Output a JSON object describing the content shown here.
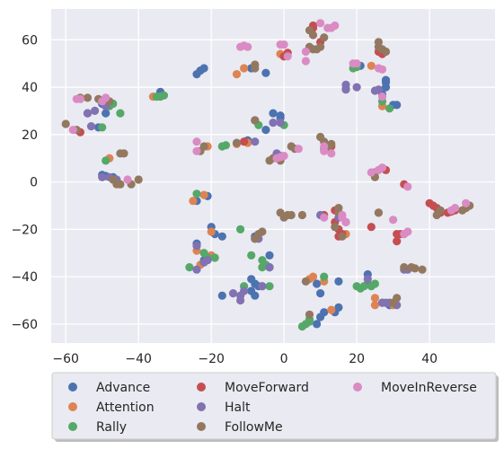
{
  "chart_data": {
    "type": "scatter",
    "xlim": [
      -64,
      58
    ],
    "ylim": [
      -68,
      73
    ],
    "x_ticks": [
      -60,
      -40,
      -20,
      0,
      20,
      40
    ],
    "y_ticks": [
      -60,
      -40,
      -20,
      0,
      20,
      40,
      60
    ],
    "x_tick_labels": [
      "−60",
      "−40",
      "−20",
      "0",
      "20",
      "40"
    ],
    "y_tick_labels": [
      "−60",
      "−40",
      "−20",
      "0",
      "20",
      "40",
      "60"
    ],
    "grid": true,
    "legend_placement": "bottom-center",
    "series": [
      {
        "name": "Advance",
        "color": "#4c72b0",
        "points": [
          [
            -24,
            45.5
          ],
          [
            -23,
            47
          ],
          [
            -22,
            48
          ],
          [
            -34,
            38
          ],
          [
            -50,
            33
          ],
          [
            -54,
            29
          ],
          [
            -49,
            29
          ],
          [
            -51,
            23
          ],
          [
            -50,
            3
          ],
          [
            -49,
            2.5
          ],
          [
            -47,
            2
          ],
          [
            -24,
            -8
          ],
          [
            -21,
            -6
          ],
          [
            -20,
            -19
          ],
          [
            -19,
            -22
          ],
          [
            -17,
            -23
          ],
          [
            -24,
            -26
          ],
          [
            -22,
            -33
          ],
          [
            -9,
            -46
          ],
          [
            -8,
            -48
          ],
          [
            -17,
            -48
          ],
          [
            -8,
            -43
          ],
          [
            -9,
            -41
          ],
          [
            -8,
            -23
          ],
          [
            -4,
            -36
          ],
          [
            -4,
            -31
          ],
          [
            -7,
            -44
          ],
          [
            -3,
            29
          ],
          [
            -1,
            28
          ],
          [
            -10,
            17.5
          ],
          [
            -5,
            22
          ],
          [
            -8,
            26
          ],
          [
            -1,
            27
          ],
          [
            -5,
            46
          ],
          [
            -9,
            48
          ],
          [
            9,
            -43
          ],
          [
            10,
            -47
          ],
          [
            10,
            -57
          ],
          [
            11,
            -55
          ],
          [
            9,
            -60
          ],
          [
            15,
            -42
          ],
          [
            14,
            -55
          ],
          [
            15,
            -53
          ],
          [
            28,
            40
          ],
          [
            28,
            42
          ],
          [
            28,
            43
          ],
          [
            30,
            32.5
          ],
          [
            31,
            32.5
          ],
          [
            21,
            49
          ],
          [
            27,
            37
          ],
          [
            23,
            -39
          ],
          [
            23,
            -43
          ],
          [
            29,
            -52
          ]
        ]
      },
      {
        "name": "Attention",
        "color": "#dd8452",
        "points": [
          [
            -13,
            45.5
          ],
          [
            -11,
            48
          ],
          [
            -36,
            36
          ],
          [
            -48,
            10
          ],
          [
            -25,
            -8
          ],
          [
            -20,
            -21
          ],
          [
            -20,
            -31
          ],
          [
            -24,
            -29
          ],
          [
            -23,
            -35
          ],
          [
            -13,
            16
          ],
          [
            -10,
            16.5
          ],
          [
            -2,
            10
          ],
          [
            -1,
            54
          ],
          [
            0,
            53
          ],
          [
            7,
            -41
          ],
          [
            8,
            -40
          ],
          [
            11,
            -42
          ],
          [
            13,
            -54
          ],
          [
            17,
            -22
          ],
          [
            25,
            -49
          ],
          [
            25,
            -52
          ],
          [
            27,
            -51
          ],
          [
            30,
            -52
          ],
          [
            27,
            32
          ],
          [
            24,
            49
          ],
          [
            -22,
            -5.5
          ],
          [
            -21,
            15
          ]
        ]
      },
      {
        "name": "Rally",
        "color": "#55a868",
        "points": [
          [
            -34,
            36
          ],
          [
            -33,
            36.5
          ],
          [
            -48,
            32
          ],
          [
            -47,
            33
          ],
          [
            -45,
            29
          ],
          [
            -49,
            9
          ],
          [
            -24,
            -5
          ],
          [
            -22,
            -30
          ],
          [
            -21,
            -32
          ],
          [
            -26,
            -36
          ],
          [
            -19,
            -32
          ],
          [
            -17,
            15
          ],
          [
            -16,
            15.5
          ],
          [
            -7,
            24
          ],
          [
            0,
            24
          ],
          [
            -12,
            -20
          ],
          [
            -11,
            -44
          ],
          [
            -9,
            -31
          ],
          [
            -6,
            -33
          ],
          [
            -6,
            -36
          ],
          [
            -5,
            -35
          ],
          [
            -6,
            -44
          ],
          [
            -4,
            -44
          ],
          [
            5,
            -61
          ],
          [
            6,
            -60
          ],
          [
            7,
            -59
          ],
          [
            7,
            -58
          ],
          [
            11,
            -40
          ],
          [
            17,
            39.5
          ],
          [
            19,
            48
          ],
          [
            20,
            48.5
          ],
          [
            20,
            -44
          ],
          [
            21,
            -45
          ],
          [
            22,
            -44
          ],
          [
            24,
            -44
          ],
          [
            25,
            -43
          ],
          [
            27,
            34
          ],
          [
            29,
            31
          ],
          [
            -50,
            23
          ],
          [
            -35,
            36
          ]
        ]
      },
      {
        "name": "MoveForward",
        "color": "#c44e52",
        "points": [
          [
            -56,
            21
          ],
          [
            -11,
            17
          ],
          [
            0,
            53
          ],
          [
            1,
            54.5
          ],
          [
            8,
            65
          ],
          [
            8,
            66
          ],
          [
            10,
            59
          ],
          [
            13,
            15
          ],
          [
            14,
            -12
          ],
          [
            15,
            -13
          ],
          [
            14,
            -17
          ],
          [
            15,
            -20
          ],
          [
            15,
            -23
          ],
          [
            16,
            -22
          ],
          [
            24,
            -19
          ],
          [
            26,
            -13
          ],
          [
            28,
            5
          ],
          [
            31,
            -22
          ],
          [
            31,
            -25
          ],
          [
            32,
            -22
          ],
          [
            33,
            -1
          ],
          [
            33,
            -22
          ],
          [
            40,
            -9
          ],
          [
            41,
            -10
          ],
          [
            42,
            -11
          ],
          [
            43,
            -13
          ],
          [
            45,
            -13
          ],
          [
            46,
            -12.5
          ],
          [
            47,
            -12
          ],
          [
            26,
            55
          ],
          [
            27,
            54
          ],
          [
            11,
            -14
          ]
        ]
      },
      {
        "name": "Halt",
        "color": "#8172b2",
        "points": [
          [
            -54,
            29
          ],
          [
            -52,
            30
          ],
          [
            -49,
            32
          ],
          [
            -53,
            23.5
          ],
          [
            -50,
            2
          ],
          [
            -48,
            2
          ],
          [
            -46,
            1
          ],
          [
            -24,
            -27
          ],
          [
            -24,
            -37
          ],
          [
            -22,
            -34
          ],
          [
            -21,
            -33
          ],
          [
            -14,
            -47
          ],
          [
            -12,
            -48
          ],
          [
            -12,
            -50
          ],
          [
            -11,
            -46
          ],
          [
            -8,
            -24
          ],
          [
            -7,
            -24
          ],
          [
            -6,
            -44
          ],
          [
            -4,
            -36
          ],
          [
            -8,
            17
          ],
          [
            -3,
            25
          ],
          [
            -1,
            25
          ],
          [
            -2,
            12
          ],
          [
            -1,
            11
          ],
          [
            11,
            14
          ],
          [
            10,
            -14
          ],
          [
            15,
            -15
          ],
          [
            17,
            41
          ],
          [
            17,
            39
          ],
          [
            20,
            40
          ],
          [
            25,
            38.5
          ],
          [
            26,
            39
          ],
          [
            23,
            -41
          ],
          [
            27,
            -51
          ],
          [
            28,
            -51
          ],
          [
            29,
            -51
          ],
          [
            31,
            -52
          ],
          [
            33,
            -37
          ],
          [
            34,
            -37
          ],
          [
            17,
            -17
          ]
        ]
      },
      {
        "name": "FollowMe",
        "color": "#937860",
        "points": [
          [
            -60,
            24.5
          ],
          [
            -57,
            22
          ],
          [
            -56,
            35.5
          ],
          [
            -54,
            35.5
          ],
          [
            -51,
            35
          ],
          [
            -48,
            34
          ],
          [
            -45,
            12
          ],
          [
            -44,
            12
          ],
          [
            -47,
            1
          ],
          [
            -46,
            -1
          ],
          [
            -45,
            -1
          ],
          [
            -42,
            -1
          ],
          [
            -40,
            1
          ],
          [
            -23,
            13
          ],
          [
            -22,
            15
          ],
          [
            -13,
            16.5
          ],
          [
            -8,
            26
          ],
          [
            -8,
            48
          ],
          [
            -8,
            49.5
          ],
          [
            -4,
            9
          ],
          [
            -3,
            10
          ],
          [
            -1,
            9
          ],
          [
            2,
            15
          ],
          [
            3,
            14
          ],
          [
            -1,
            -13
          ],
          [
            0,
            -15
          ],
          [
            1,
            -14
          ],
          [
            2,
            -14
          ],
          [
            5,
            -14
          ],
          [
            -6,
            -21
          ],
          [
            -7,
            -22
          ],
          [
            -8,
            -24
          ],
          [
            6,
            -42
          ],
          [
            7,
            -56
          ],
          [
            7,
            57
          ],
          [
            8,
            56
          ],
          [
            9,
            56
          ],
          [
            10,
            57
          ],
          [
            7,
            64
          ],
          [
            8,
            62
          ],
          [
            11,
            61
          ],
          [
            10,
            19
          ],
          [
            11,
            17
          ],
          [
            13,
            16
          ],
          [
            12,
            14
          ],
          [
            15,
            -11
          ],
          [
            15,
            -13
          ],
          [
            14,
            -19
          ],
          [
            16,
            -23
          ],
          [
            25,
            2
          ],
          [
            25,
            4
          ],
          [
            26,
            -13
          ],
          [
            27,
            6
          ],
          [
            26,
            57
          ],
          [
            26,
            59
          ],
          [
            27,
            56
          ],
          [
            28,
            55
          ],
          [
            33,
            -36
          ],
          [
            35,
            -36
          ],
          [
            36,
            -36.5
          ],
          [
            38,
            -37
          ],
          [
            31,
            -49
          ],
          [
            30,
            -51
          ],
          [
            42,
            -14
          ],
          [
            49,
            -12
          ],
          [
            50,
            -11
          ],
          [
            51,
            -10
          ],
          [
            43,
            -12
          ]
        ]
      },
      {
        "name": "MoveInReverse",
        "color": "#da8bc3",
        "points": [
          [
            -58,
            22
          ],
          [
            -57,
            35
          ],
          [
            -56,
            35
          ],
          [
            -50,
            34
          ],
          [
            -49,
            35.5
          ],
          [
            -43,
            1
          ],
          [
            -24,
            13
          ],
          [
            -24,
            17
          ],
          [
            -12,
            57
          ],
          [
            -11,
            57.5
          ],
          [
            -10,
            57
          ],
          [
            -2,
            10
          ],
          [
            -1,
            10.5
          ],
          [
            0,
            11
          ],
          [
            -1,
            58
          ],
          [
            0,
            58
          ],
          [
            1,
            53
          ],
          [
            4,
            14
          ],
          [
            6,
            55
          ],
          [
            6,
            51
          ],
          [
            10,
            67
          ],
          [
            12,
            65
          ],
          [
            13,
            65
          ],
          [
            14,
            66
          ],
          [
            11,
            15
          ],
          [
            11,
            13
          ],
          [
            13,
            12
          ],
          [
            16,
            -14
          ],
          [
            16,
            -15
          ],
          [
            17,
            -17
          ],
          [
            11,
            -15
          ],
          [
            19,
            50
          ],
          [
            20,
            50
          ],
          [
            24,
            4
          ],
          [
            26,
            5
          ],
          [
            27,
            6
          ],
          [
            27,
            36
          ],
          [
            30,
            -16
          ],
          [
            33,
            -22
          ],
          [
            34,
            -2
          ],
          [
            34,
            -21
          ],
          [
            46,
            -12
          ],
          [
            47,
            -11
          ],
          [
            50,
            -9
          ],
          [
            26,
            48
          ],
          [
            27,
            47.5
          ]
        ]
      }
    ]
  }
}
